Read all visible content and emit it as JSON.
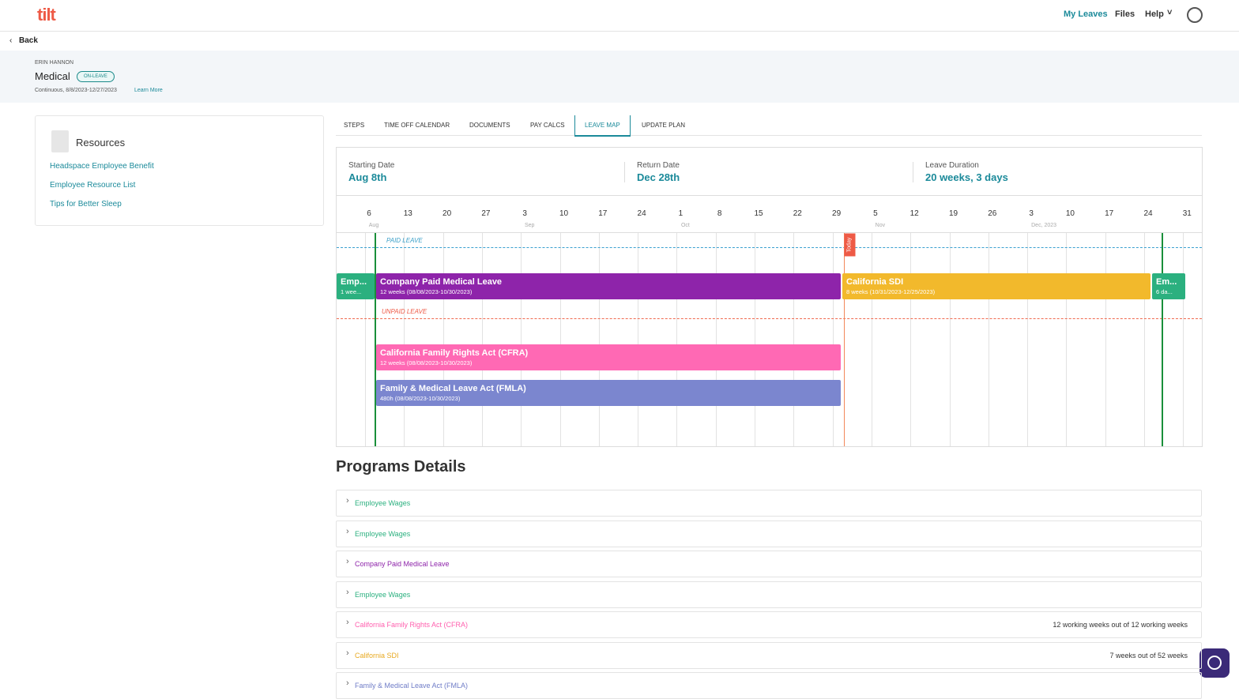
{
  "nav": {
    "logo": "tilt",
    "links": [
      "My Leaves",
      "Files",
      "Help"
    ]
  },
  "back": "Back",
  "header": {
    "employee": "ERIN HANNON",
    "title": "Medical",
    "badge": "ON-LEAVE",
    "subtitle": "Continuous, 8/8/2023-12/27/2023",
    "link": "Learn More"
  },
  "resources": {
    "title": "Resources",
    "links": [
      "Headspace Employee Benefit",
      "Employee Resource List",
      "Tips for Better Sleep"
    ]
  },
  "tabs": {
    "items": [
      "STEPS",
      "TIME OFF CALENDAR",
      "DOCUMENTS",
      "PAY CALCS",
      "LEAVE MAP",
      "UPDATE PLAN"
    ],
    "active": 4
  },
  "summary": [
    {
      "label": "Starting Date",
      "value": "Aug 8th"
    },
    {
      "label": "Return Date",
      "value": "Dec 28th"
    },
    {
      "label": "Leave Duration",
      "value": "20 weeks, 3 days"
    }
  ],
  "timeline": {
    "weeks": [
      {
        "day": "6",
        "month": "Aug"
      },
      {
        "day": "13"
      },
      {
        "day": "20"
      },
      {
        "day": "27"
      },
      {
        "day": "3",
        "month": "Sep"
      },
      {
        "day": "10"
      },
      {
        "day": "17"
      },
      {
        "day": "24"
      },
      {
        "day": "1",
        "month": "Oct"
      },
      {
        "day": "8"
      },
      {
        "day": "15"
      },
      {
        "day": "22"
      },
      {
        "day": "29"
      },
      {
        "day": "5",
        "month": "Nov"
      },
      {
        "day": "12"
      },
      {
        "day": "19"
      },
      {
        "day": "26"
      },
      {
        "day": "3",
        "month": "Dec, 2023"
      },
      {
        "day": "10"
      },
      {
        "day": "17"
      },
      {
        "day": "24"
      },
      {
        "day": "31"
      }
    ],
    "paid_label": "PAID LEAVE",
    "unpaid_label": "UNPAID LEAVE",
    "today": "Today",
    "bars": [
      {
        "title": "Emp...",
        "detail": "1 wee...",
        "color": "#2bb07f"
      },
      {
        "title": "Company Paid Medical Leave",
        "detail": "12 weeks (08/08/2023-10/30/2023)",
        "color": "#8e24aa"
      },
      {
        "title": "California SDI",
        "detail": "8 weeks (10/31/2023-12/25/2023)",
        "color": "#f2b92c"
      },
      {
        "title": "Em...",
        "detail": "6 da...",
        "color": "#2bb07f"
      },
      {
        "title": "California Family Rights Act (CFRA)",
        "detail": "12 weeks (08/08/2023-10/30/2023)",
        "color": "#ff69b4"
      },
      {
        "title": "Family & Medical Leave Act (FMLA)",
        "detail": "480h (08/08/2023-10/30/2023)",
        "color": "#7b86cf"
      }
    ]
  },
  "programs": {
    "title": "Programs Details",
    "items": [
      {
        "name": "Employee Wages",
        "color": "#2bb07f"
      },
      {
        "name": "Employee Wages",
        "color": "#2bb07f"
      },
      {
        "name": "Company Paid Medical Leave",
        "color": "#8e24aa"
      },
      {
        "name": "Employee Wages",
        "color": "#2bb07f"
      },
      {
        "name": "California Family Rights Act (CFRA)",
        "color": "#ff5fae",
        "note": "12 working weeks out of 12 working weeks"
      },
      {
        "name": "California SDI",
        "color": "#e8a920",
        "note": "7 weeks out of 52 weeks"
      },
      {
        "name": "Family & Medical Leave Act (FMLA)",
        "color": "#6f7cc7"
      }
    ]
  }
}
